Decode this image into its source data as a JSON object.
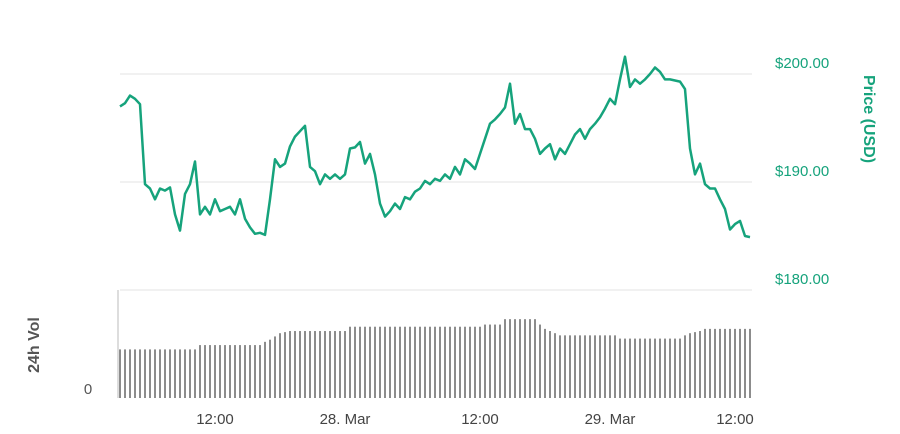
{
  "chart_data": {
    "type": "line",
    "ylabel": "Price (USD)",
    "y2label": "24h Vol",
    "categories": [
      null,
      null,
      null,
      null,
      null,
      null,
      null,
      null,
      null,
      null,
      null,
      null,
      null,
      null,
      null,
      null,
      null,
      null,
      null,
      "12:00",
      null,
      null,
      null,
      null,
      null,
      null,
      null,
      null,
      null,
      null,
      null,
      null,
      null,
      null,
      null,
      null,
      null,
      null,
      null,
      null,
      null,
      null,
      null,
      null,
      null,
      "28. Mar",
      null,
      null,
      null,
      null,
      null,
      null,
      null,
      null,
      null,
      null,
      null,
      null,
      null,
      null,
      null,
      null,
      null,
      null,
      null,
      null,
      null,
      null,
      null,
      null,
      null,
      null,
      "12:00",
      null,
      null,
      null,
      null,
      null,
      null,
      null,
      null,
      null,
      null,
      null,
      null,
      null,
      null,
      null,
      null,
      null,
      null,
      null,
      null,
      null,
      null,
      null,
      null,
      null,
      "29. Mar",
      null,
      null,
      null,
      null,
      null,
      null,
      null,
      null,
      null,
      null,
      null,
      null,
      null,
      null,
      null,
      null,
      null,
      null,
      null,
      null,
      null,
      null,
      null,
      null,
      "12:00",
      null,
      null,
      null
    ],
    "series": [
      {
        "type": "line",
        "color": "#16a37c",
        "values": [
          197.0,
          197.3,
          198.0,
          197.7,
          197.2,
          189.8,
          189.4,
          188.4,
          189.4,
          189.2,
          189.5,
          187.0,
          185.5,
          188.9,
          189.8,
          191.9,
          187.0,
          187.7,
          187.0,
          188.4,
          187.3,
          187.5,
          187.7,
          187.0,
          188.4,
          186.6,
          185.8,
          185.2,
          185.3,
          185.1,
          188.4,
          192.1,
          191.4,
          191.7,
          193.3,
          194.2,
          194.7,
          195.2,
          191.4,
          191.0,
          189.8,
          190.7,
          190.3,
          190.7,
          190.3,
          190.7,
          193.1,
          193.2,
          193.7,
          191.7,
          192.6,
          190.7,
          188.0,
          186.8,
          187.3,
          188.0,
          187.5,
          188.6,
          188.4,
          189.1,
          189.4,
          190.1,
          189.8,
          190.3,
          190.1,
          190.7,
          190.3,
          191.4,
          190.7,
          192.1,
          191.7,
          191.2,
          192.6,
          194.0,
          195.4,
          195.8,
          196.3,
          196.9,
          199.1,
          195.4,
          196.3,
          194.9,
          194.9,
          194.0,
          192.6,
          193.1,
          193.5,
          192.1,
          193.1,
          192.6,
          193.5,
          194.4,
          194.9,
          194.0,
          194.9,
          195.4,
          196.0,
          196.8,
          197.7,
          197.2,
          199.5,
          201.6,
          198.8,
          199.5,
          199.1,
          199.5,
          200.0,
          200.6,
          200.2,
          199.5,
          199.5,
          199.4,
          199.3,
          198.6,
          193.1,
          190.7,
          191.7,
          189.8,
          189.4,
          189.4,
          188.4,
          187.5,
          185.6,
          186.1,
          186.4,
          185.0,
          184.9
        ]
      },
      {
        "type": "bar",
        "axis": "y2",
        "color": "#8c8c8c",
        "values": [
          45,
          45,
          45,
          45,
          45,
          45,
          45,
          45,
          45,
          45,
          45,
          45,
          45,
          45,
          45,
          45,
          49,
          49,
          49,
          49,
          49,
          49,
          49,
          49,
          49,
          49,
          49,
          49,
          49,
          52,
          54,
          57,
          60,
          61,
          62,
          62,
          62,
          62,
          62,
          62,
          62,
          62,
          62,
          62,
          62,
          62,
          66,
          66,
          66,
          66,
          66,
          66,
          66,
          66,
          66,
          66,
          66,
          66,
          66,
          66,
          66,
          66,
          66,
          66,
          66,
          66,
          66,
          66,
          66,
          66,
          66,
          66,
          66,
          68,
          68,
          68,
          68,
          73,
          73,
          73,
          73,
          73,
          73,
          73,
          68,
          64,
          62,
          60,
          58,
          58,
          58,
          58,
          58,
          58,
          58,
          58,
          58,
          58,
          58,
          58,
          55,
          55,
          55,
          55,
          55,
          55,
          55,
          55,
          55,
          55,
          55,
          55,
          55,
          58,
          60,
          61,
          62,
          64,
          64,
          64,
          64,
          64,
          64,
          64,
          64,
          64,
          64
        ]
      }
    ],
    "ylim": [
      180,
      202.5
    ],
    "yticks": [
      {
        "value": 180,
        "label": "$180.00"
      },
      {
        "value": 190,
        "label": "$190.00"
      },
      {
        "value": 200,
        "label": "$200.00"
      }
    ],
    "y2lim": [
      0,
      100
    ],
    "y2ticks": [
      0
    ],
    "grid": true
  }
}
